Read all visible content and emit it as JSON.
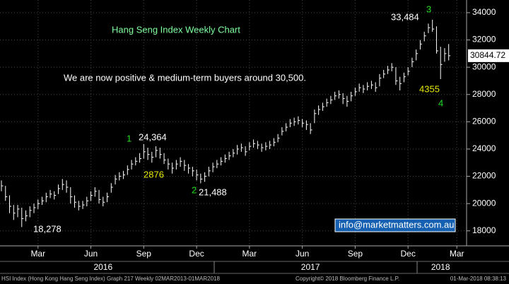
{
  "chart_data": {
    "type": "ohlc",
    "title": "Hang Seng Index Weekly Chart",
    "annotations": [
      "We are now positive & medium-term buyers around 30,500.",
      "24,364",
      "18,278",
      "21,488",
      "33,484",
      "1",
      "2",
      "3",
      "4",
      "2876",
      "4355",
      "info@marketmatters.com.au"
    ],
    "close": [
      21300,
      20500,
      19800,
      19300,
      19600,
      18900,
      19100,
      19500,
      19700,
      20000,
      20200,
      20500,
      20700,
      20600,
      21100,
      21400,
      21200,
      20500,
      20100,
      19800,
      19900,
      20200,
      20600,
      20900,
      20300,
      20100,
      20500,
      21200,
      21800,
      22000,
      22100,
      22500,
      22900,
      23100,
      23300,
      23800,
      23600,
      23400,
      23900,
      23600,
      23200,
      22900,
      22600,
      22900,
      23100,
      22800,
      22600,
      22400,
      22100,
      21800,
      22000,
      22400,
      22700,
      22900,
      23100,
      23300,
      23500,
      23700,
      24000,
      24100,
      23800,
      24200,
      24400,
      24300,
      24100,
      24200,
      24300,
      24500,
      24800,
      25300,
      25600,
      25900,
      26000,
      26100,
      25900,
      25800,
      25400,
      26600,
      26900,
      27100,
      27400,
      27600,
      27900,
      28000,
      27700,
      27500,
      27900,
      28200,
      28500,
      28400,
      28600,
      28700,
      28500,
      29200,
      29500,
      29800,
      30000,
      29000,
      28800,
      29300,
      29700,
      30400,
      31000,
      31700,
      32300,
      32900,
      32800,
      31200,
      30200,
      31000,
      30844.72
    ],
    "high": [
      21700,
      21300,
      20600,
      19900,
      19900,
      19700,
      19500,
      19800,
      20000,
      20300,
      20500,
      20800,
      21000,
      20900,
      21400,
      21800,
      21700,
      21200,
      20600,
      20200,
      20200,
      20500,
      20900,
      21200,
      21000,
      20500,
      20800,
      21500,
      22100,
      22300,
      22400,
      22800,
      23200,
      23400,
      23700,
      24364,
      24100,
      23800,
      24200,
      24100,
      23700,
      23300,
      23000,
      23200,
      23400,
      23200,
      22900,
      22700,
      22500,
      22200,
      22300,
      22700,
      23000,
      23200,
      23400,
      23600,
      23800,
      24000,
      24300,
      24400,
      24200,
      24500,
      24700,
      24600,
      24400,
      24500,
      24600,
      24800,
      25100,
      25600,
      25900,
      26200,
      26300,
      26400,
      26200,
      26100,
      25900,
      26900,
      27200,
      27400,
      27700,
      27900,
      28200,
      28300,
      28100,
      27900,
      28200,
      28500,
      28800,
      28700,
      28900,
      29000,
      28900,
      29500,
      29800,
      30100,
      30300,
      30000,
      29300,
      29600,
      30000,
      30700,
      31300,
      32000,
      32600,
      33200,
      33484,
      33000,
      31500,
      31400,
      31700
    ],
    "low": [
      20900,
      20200,
      19300,
      18800,
      19000,
      18278,
      18700,
      19000,
      19300,
      19600,
      19900,
      20100,
      20400,
      20300,
      20700,
      21000,
      20800,
      20000,
      19700,
      19500,
      19600,
      19800,
      20200,
      20500,
      20000,
      19800,
      20100,
      20800,
      21400,
      21700,
      21800,
      22100,
      22500,
      22800,
      23000,
      23300,
      23200,
      23000,
      23400,
      23300,
      22900,
      22500,
      22200,
      22500,
      22700,
      22400,
      22200,
      22000,
      21700,
      21488,
      21600,
      22000,
      22300,
      22600,
      22800,
      23000,
      23200,
      23400,
      23600,
      23800,
      23500,
      23900,
      24100,
      24000,
      23800,
      23900,
      24000,
      24200,
      24500,
      25000,
      25300,
      25600,
      25700,
      25800,
      25600,
      25400,
      25100,
      25900,
      26500,
      26800,
      27100,
      27300,
      27600,
      27700,
      27300,
      27100,
      27500,
      27900,
      28200,
      28100,
      28300,
      28400,
      28200,
      28600,
      29200,
      29500,
      29700,
      28700,
      28300,
      28900,
      29400,
      30000,
      30500,
      31300,
      31900,
      32500,
      32600,
      31000,
      29129,
      30400,
      30500
    ],
    "color": "#ffffff",
    "grid": true,
    "xlim": [
      -0.35,
      114.4
    ],
    "xticks": [
      {
        "value": 9,
        "label": "Mar"
      },
      {
        "value": 22,
        "label": "Jun"
      },
      {
        "value": 35,
        "label": "Sep"
      },
      {
        "value": 48,
        "label": "Dec"
      },
      {
        "value": 61,
        "label": "Mar"
      },
      {
        "value": 74,
        "label": "Jun"
      },
      {
        "value": 87,
        "label": "Sep"
      },
      {
        "value": 100,
        "label": "Dec"
      },
      {
        "value": 112,
        "label": "Mar"
      }
    ],
    "xgroups": [
      {
        "value": 25,
        "label": "2016"
      },
      {
        "value": 76,
        "label": "2017"
      },
      {
        "value": 108,
        "label": "2018"
      }
    ],
    "ylim": [
      16900,
      34930
    ],
    "yticks": [
      18000,
      20000,
      22000,
      24000,
      26000,
      28000,
      30000,
      32000,
      34000
    ]
  },
  "footer": {
    "left": "HSI Index (Hong Kong Hang Seng Index) Graph 217  Weekly 02MAR2013-01MAR2018",
    "center": "Copyright© 2018 Bloomberg Finance L.P.",
    "right": "01-Mar-2018 08:38:13"
  }
}
